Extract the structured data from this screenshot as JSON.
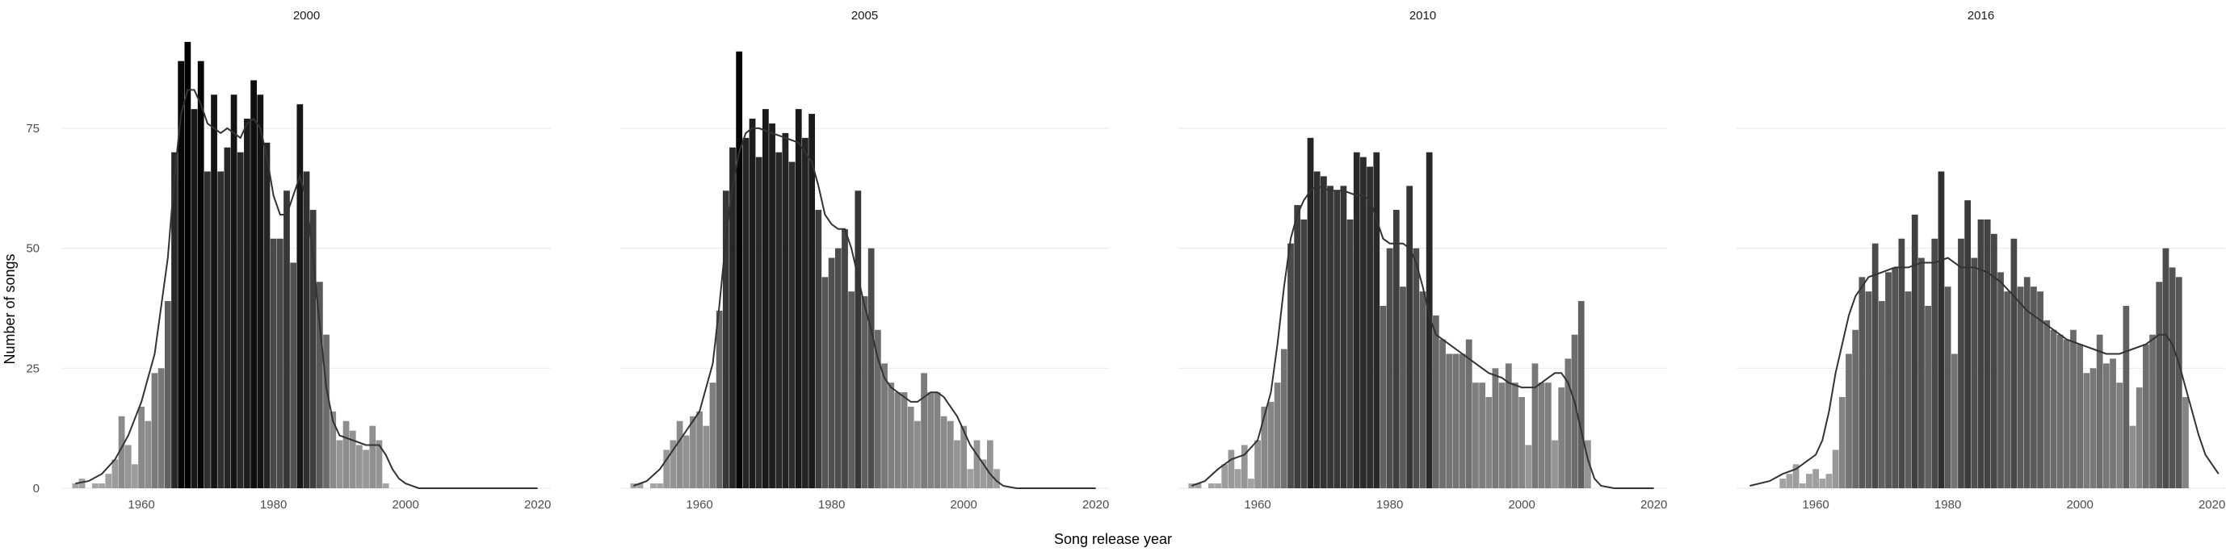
{
  "chart_data": {
    "type": "bar",
    "xlabel": "Song release year",
    "ylabel": "Number of songs",
    "xlim": [
      1948,
      2022
    ],
    "ylim": [
      0,
      95
    ],
    "x_ticks": [
      1960,
      1980,
      2000,
      2020
    ],
    "y_ticks": [
      0,
      25,
      50,
      75
    ],
    "grid": true,
    "fill_scale": {
      "low": "#a6a6a6",
      "high": "#000000",
      "min_count": 0,
      "max_count": 93
    },
    "density_line_color": "#333333",
    "facets": [
      {
        "title": "2000",
        "x": [
          1950,
          1951,
          1953,
          1954,
          1955,
          1956,
          1957,
          1958,
          1959,
          1960,
          1961,
          1962,
          1963,
          1964,
          1965,
          1966,
          1967,
          1968,
          1969,
          1970,
          1971,
          1972,
          1973,
          1974,
          1975,
          1976,
          1977,
          1978,
          1979,
          1980,
          1981,
          1982,
          1983,
          1984,
          1985,
          1986,
          1987,
          1988,
          1989,
          1990,
          1991,
          1992,
          1993,
          1994,
          1995,
          1996,
          1997,
          1998
        ],
        "values": [
          1,
          2,
          1,
          1,
          3,
          6,
          15,
          9,
          5,
          17,
          14,
          24,
          25,
          39,
          70,
          89,
          93,
          79,
          89,
          66,
          82,
          66,
          71,
          82,
          70,
          77,
          85,
          82,
          72,
          52,
          52,
          62,
          47,
          80,
          66,
          58,
          43,
          32,
          16,
          10,
          14,
          12,
          9,
          8,
          13,
          10,
          1,
          0
        ],
        "density": [
          [
            1950,
            1
          ],
          [
            1952,
            1.5
          ],
          [
            1954,
            3
          ],
          [
            1956,
            6
          ],
          [
            1958,
            11
          ],
          [
            1960,
            18
          ],
          [
            1962,
            28
          ],
          [
            1964,
            48
          ],
          [
            1965,
            65
          ],
          [
            1966,
            78
          ],
          [
            1967,
            83
          ],
          [
            1968,
            83
          ],
          [
            1969,
            80
          ],
          [
            1970,
            76
          ],
          [
            1972,
            74
          ],
          [
            1973,
            75
          ],
          [
            1974,
            74
          ],
          [
            1975,
            73
          ],
          [
            1976,
            76
          ],
          [
            1977,
            77
          ],
          [
            1978,
            75
          ],
          [
            1979,
            69
          ],
          [
            1980,
            61
          ],
          [
            1981,
            57
          ],
          [
            1982,
            57
          ],
          [
            1983,
            61
          ],
          [
            1984,
            65
          ],
          [
            1985,
            60
          ],
          [
            1986,
            48
          ],
          [
            1987,
            34
          ],
          [
            1988,
            21
          ],
          [
            1989,
            14
          ],
          [
            1990,
            11
          ],
          [
            1992,
            10
          ],
          [
            1994,
            9
          ],
          [
            1996,
            9
          ],
          [
            1997,
            7
          ],
          [
            1998,
            4
          ],
          [
            1999,
            2
          ],
          [
            2000,
            1
          ],
          [
            2002,
            0
          ],
          [
            2010,
            0
          ],
          [
            2020,
            0
          ]
        ]
      },
      {
        "title": "2005",
        "x": [
          1950,
          1951,
          1953,
          1954,
          1955,
          1956,
          1957,
          1958,
          1959,
          1960,
          1961,
          1962,
          1963,
          1964,
          1965,
          1966,
          1967,
          1968,
          1969,
          1970,
          1971,
          1972,
          1973,
          1974,
          1975,
          1976,
          1977,
          1978,
          1979,
          1980,
          1981,
          1982,
          1983,
          1984,
          1985,
          1986,
          1987,
          1988,
          1989,
          1990,
          1991,
          1992,
          1993,
          1994,
          1995,
          1996,
          1997,
          1998,
          1999,
          2000,
          2001,
          2002,
          2003,
          2004,
          2005
        ],
        "values": [
          1,
          1,
          1,
          1,
          8,
          10,
          14,
          11,
          15,
          16,
          13,
          22,
          37,
          62,
          71,
          91,
          73,
          77,
          69,
          79,
          76,
          70,
          74,
          68,
          79,
          73,
          78,
          58,
          44,
          48,
          50,
          54,
          41,
          62,
          40,
          50,
          33,
          26,
          22,
          20,
          20,
          17,
          14,
          24,
          20,
          20,
          15,
          14,
          10,
          13,
          4,
          10,
          6,
          10,
          4
        ],
        "density": [
          [
            1950,
            0.5
          ],
          [
            1952,
            1.5
          ],
          [
            1954,
            4
          ],
          [
            1956,
            8
          ],
          [
            1958,
            12
          ],
          [
            1960,
            16
          ],
          [
            1962,
            26
          ],
          [
            1963,
            38
          ],
          [
            1964,
            52
          ],
          [
            1965,
            63
          ],
          [
            1966,
            70
          ],
          [
            1967,
            74
          ],
          [
            1968,
            75
          ],
          [
            1969,
            75
          ],
          [
            1971,
            74
          ],
          [
            1973,
            73
          ],
          [
            1975,
            72
          ],
          [
            1977,
            68
          ],
          [
            1978,
            63
          ],
          [
            1979,
            57
          ],
          [
            1980,
            55
          ],
          [
            1981,
            54
          ],
          [
            1982,
            54
          ],
          [
            1983,
            50
          ],
          [
            1984,
            44
          ],
          [
            1985,
            38
          ],
          [
            1986,
            33
          ],
          [
            1987,
            27
          ],
          [
            1988,
            23
          ],
          [
            1989,
            21
          ],
          [
            1990,
            20
          ],
          [
            1991,
            19
          ],
          [
            1992,
            18
          ],
          [
            1993,
            18
          ],
          [
            1994,
            19
          ],
          [
            1995,
            20
          ],
          [
            1996,
            20
          ],
          [
            1997,
            19
          ],
          [
            1998,
            17
          ],
          [
            1999,
            15
          ],
          [
            2000,
            12
          ],
          [
            2001,
            9
          ],
          [
            2002,
            7
          ],
          [
            2003,
            5
          ],
          [
            2004,
            3
          ],
          [
            2005,
            1.5
          ],
          [
            2006,
            0.5
          ],
          [
            2008,
            0
          ],
          [
            2020,
            0
          ]
        ]
      },
      {
        "title": "2010",
        "x": [
          1950,
          1951,
          1953,
          1954,
          1955,
          1956,
          1957,
          1958,
          1959,
          1960,
          1961,
          1962,
          1963,
          1964,
          1965,
          1966,
          1967,
          1968,
          1969,
          1970,
          1971,
          1972,
          1973,
          1974,
          1975,
          1976,
          1977,
          1978,
          1979,
          1980,
          1981,
          1982,
          1983,
          1984,
          1985,
          1986,
          1987,
          1988,
          1989,
          1990,
          1991,
          1992,
          1993,
          1994,
          1995,
          1996,
          1997,
          1998,
          1999,
          2000,
          2001,
          2002,
          2003,
          2004,
          2005,
          2006,
          2007,
          2008,
          2009,
          2010
        ],
        "values": [
          1,
          1,
          1,
          1,
          5,
          8,
          4,
          9,
          2,
          10,
          17,
          18,
          22,
          29,
          51,
          59,
          56,
          73,
          66,
          65,
          63,
          62,
          63,
          56,
          70,
          69,
          67,
          70,
          38,
          50,
          58,
          42,
          63,
          50,
          41,
          70,
          36,
          31,
          28,
          28,
          28,
          31,
          22,
          22,
          19,
          25,
          22,
          26,
          22,
          19,
          9,
          26,
          22,
          22,
          10,
          21,
          27,
          32,
          39,
          10
        ],
        "density": [
          [
            1950,
            0.5
          ],
          [
            1952,
            1.5
          ],
          [
            1954,
            4
          ],
          [
            1956,
            6
          ],
          [
            1958,
            7
          ],
          [
            1960,
            10
          ],
          [
            1962,
            20
          ],
          [
            1963,
            30
          ],
          [
            1964,
            42
          ],
          [
            1965,
            52
          ],
          [
            1966,
            57
          ],
          [
            1967,
            60
          ],
          [
            1968,
            62
          ],
          [
            1969,
            63
          ],
          [
            1971,
            62
          ],
          [
            1973,
            62
          ],
          [
            1975,
            61
          ],
          [
            1976,
            61
          ],
          [
            1977,
            60
          ],
          [
            1978,
            56
          ],
          [
            1979,
            52
          ],
          [
            1980,
            51
          ],
          [
            1981,
            51
          ],
          [
            1982,
            51
          ],
          [
            1983,
            50
          ],
          [
            1984,
            47
          ],
          [
            1985,
            42
          ],
          [
            1986,
            36
          ],
          [
            1987,
            32
          ],
          [
            1988,
            31
          ],
          [
            1989,
            30
          ],
          [
            1991,
            28
          ],
          [
            1993,
            26
          ],
          [
            1995,
            24
          ],
          [
            1997,
            23
          ],
          [
            1998,
            22
          ],
          [
            2000,
            21
          ],
          [
            2001,
            21
          ],
          [
            2002,
            21
          ],
          [
            2003,
            22
          ],
          [
            2004,
            23
          ],
          [
            2005,
            24
          ],
          [
            2006,
            24
          ],
          [
            2007,
            22
          ],
          [
            2008,
            18
          ],
          [
            2009,
            12
          ],
          [
            2010,
            6
          ],
          [
            2011,
            2
          ],
          [
            2012,
            0.5
          ],
          [
            2014,
            0
          ],
          [
            2020,
            0
          ]
        ]
      },
      {
        "title": "2016",
        "x": [
          1955,
          1956,
          1957,
          1958,
          1959,
          1960,
          1961,
          1962,
          1963,
          1964,
          1965,
          1966,
          1967,
          1968,
          1969,
          1970,
          1971,
          1972,
          1973,
          1974,
          1975,
          1976,
          1977,
          1978,
          1979,
          1980,
          1981,
          1982,
          1983,
          1984,
          1985,
          1986,
          1987,
          1988,
          1989,
          1990,
          1991,
          1992,
          1993,
          1994,
          1995,
          1996,
          1997,
          1998,
          1999,
          2000,
          2001,
          2002,
          2003,
          2004,
          2005,
          2006,
          2007,
          2008,
          2009,
          2010,
          2011,
          2012,
          2013,
          2014,
          2015,
          2016
        ],
        "values": [
          2,
          3,
          5,
          1,
          3,
          4,
          2,
          3,
          8,
          19,
          28,
          33,
          44,
          41,
          51,
          39,
          45,
          46,
          52,
          41,
          57,
          48,
          38,
          52,
          66,
          42,
          28,
          52,
          60,
          48,
          56,
          56,
          53,
          45,
          41,
          52,
          42,
          44,
          42,
          41,
          35,
          33,
          32,
          31,
          33,
          30,
          24,
          25,
          32,
          26,
          27,
          22,
          38,
          13,
          21,
          30,
          32,
          43,
          50,
          46,
          44,
          19
        ],
        "density": [
          [
            1950,
            0.5
          ],
          [
            1953,
            1.5
          ],
          [
            1955,
            3
          ],
          [
            1957,
            4
          ],
          [
            1958,
            5
          ],
          [
            1960,
            7
          ],
          [
            1961,
            10
          ],
          [
            1962,
            16
          ],
          [
            1963,
            24
          ],
          [
            1964,
            30
          ],
          [
            1965,
            36
          ],
          [
            1966,
            40
          ],
          [
            1968,
            44
          ],
          [
            1970,
            45
          ],
          [
            1972,
            46
          ],
          [
            1974,
            46
          ],
          [
            1976,
            47
          ],
          [
            1978,
            47
          ],
          [
            1980,
            48
          ],
          [
            1982,
            46
          ],
          [
            1984,
            46
          ],
          [
            1986,
            45
          ],
          [
            1988,
            43
          ],
          [
            1990,
            40
          ],
          [
            1992,
            37
          ],
          [
            1994,
            35
          ],
          [
            1996,
            33
          ],
          [
            1998,
            31
          ],
          [
            2000,
            30
          ],
          [
            2002,
            29
          ],
          [
            2004,
            28
          ],
          [
            2006,
            28
          ],
          [
            2008,
            29
          ],
          [
            2010,
            30
          ],
          [
            2011,
            31
          ],
          [
            2012,
            32
          ],
          [
            2013,
            32
          ],
          [
            2014,
            30
          ],
          [
            2015,
            26
          ],
          [
            2016,
            21
          ],
          [
            2017,
            16
          ],
          [
            2018,
            11
          ],
          [
            2019,
            7
          ],
          [
            2020,
            5
          ],
          [
            2021,
            3
          ]
        ]
      }
    ]
  }
}
